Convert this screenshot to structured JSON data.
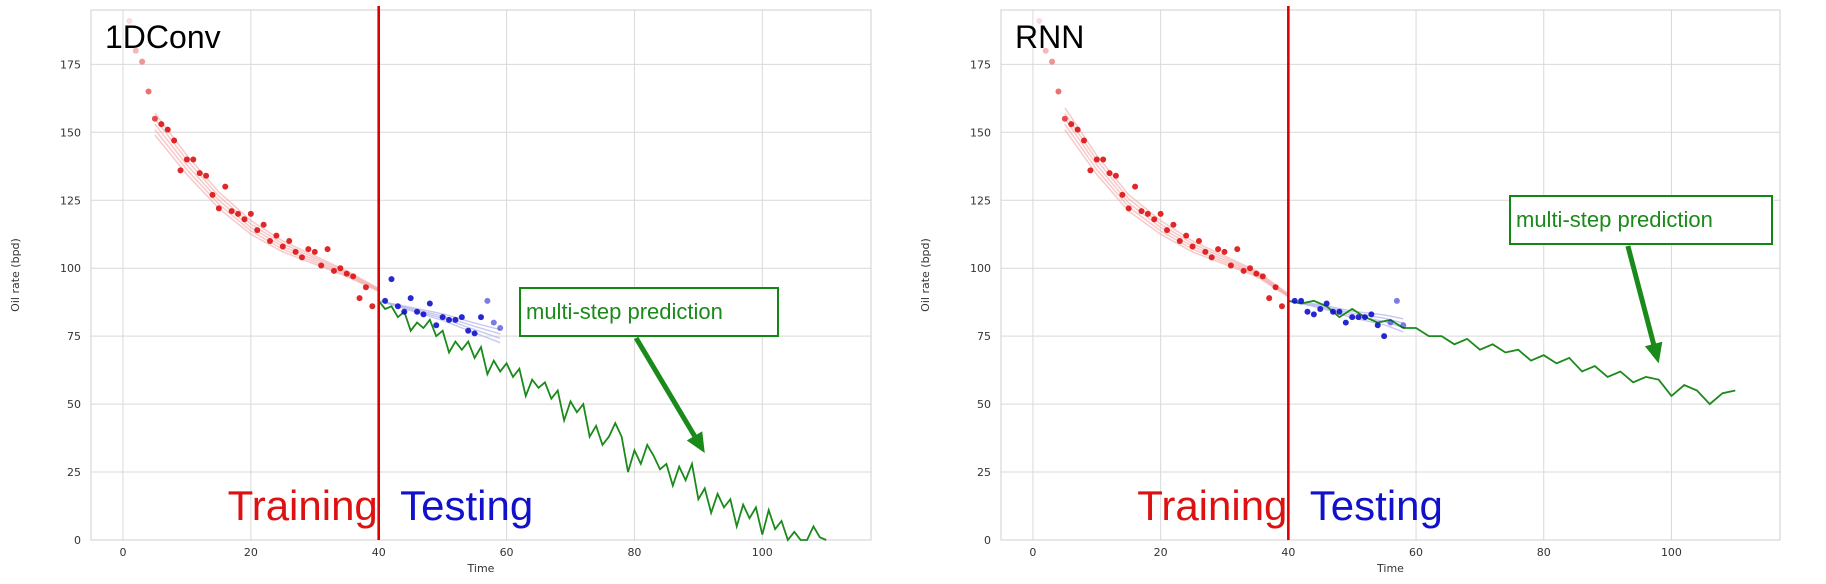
{
  "colors": {
    "training": "#dd1111",
    "testing": "#1111cc",
    "prediction": "#1a8a1a",
    "fit": "#f4a6a6",
    "test_fit": "#b9b9ee",
    "divider": "#dd0000",
    "grid": "#d9d9d9"
  },
  "chart_data": [
    {
      "type": "scatter",
      "title": "1DConv",
      "xlabel": "Time",
      "ylabel": "Oil rate (bpd)",
      "xlim": [
        -5,
        117
      ],
      "ylim": [
        0,
        195
      ],
      "xticks": [
        0,
        20,
        40,
        60,
        80,
        100
      ],
      "yticks": [
        0,
        25,
        50,
        75,
        100,
        125,
        150,
        175
      ],
      "grid": true,
      "split_x": 40,
      "region_labels": {
        "training": "Training",
        "testing": "Testing"
      },
      "annotation": "multi-step prediction",
      "annotation_arrow_target": [
        91,
        32
      ],
      "series": [
        {
          "role": "training",
          "x": [
            1,
            2,
            3,
            4,
            5,
            6,
            7,
            8,
            9,
            10,
            11,
            12,
            13,
            14,
            15,
            16,
            17,
            18,
            19,
            20,
            21,
            22,
            23,
            24,
            25,
            26,
            27,
            28,
            29,
            30,
            31,
            32,
            33,
            34,
            35,
            36,
            37,
            38,
            39
          ],
          "y": [
            191,
            180,
            176,
            165,
            155,
            153,
            151,
            147,
            136,
            140,
            140,
            135,
            134,
            127,
            122,
            130,
            121,
            120,
            118,
            120,
            114,
            116,
            110,
            112,
            108,
            110,
            106,
            104,
            107,
            106,
            101,
            107,
            99,
            100,
            98,
            97,
            89,
            93,
            86
          ]
        },
        {
          "role": "testing",
          "x": [
            41,
            42,
            43,
            44,
            45,
            46,
            47,
            48,
            49,
            50,
            51,
            52,
            53,
            54,
            55,
            56,
            57,
            58,
            59
          ],
          "y": [
            88,
            96,
            86,
            84,
            89,
            84,
            83,
            87,
            79,
            82,
            81,
            81,
            82,
            77,
            76,
            82,
            88,
            80,
            78
          ]
        },
        {
          "role": "training_fit",
          "x": [
            5,
            10,
            15,
            20,
            25,
            30,
            35,
            40
          ],
          "y": [
            153,
            138,
            125,
            115,
            108,
            103,
            98,
            92
          ]
        },
        {
          "role": "testing_fit",
          "x": [
            40,
            45,
            50,
            55,
            59
          ],
          "y": [
            88,
            85,
            82,
            78,
            75
          ]
        },
        {
          "role": "prediction",
          "x": [
            40,
            41,
            42,
            43,
            44,
            45,
            46,
            47,
            48,
            49,
            50,
            51,
            52,
            53,
            54,
            55,
            56,
            57,
            58,
            59,
            60,
            61,
            62,
            63,
            64,
            65,
            66,
            67,
            68,
            69,
            70,
            71,
            72,
            73,
            74,
            75,
            76,
            77,
            78,
            79,
            80,
            81,
            82,
            83,
            84,
            85,
            86,
            87,
            88,
            89,
            90,
            91,
            92,
            93,
            94,
            95,
            96,
            97,
            98,
            99,
            100,
            101,
            102,
            103,
            104,
            105,
            106,
            107,
            108,
            109,
            110
          ],
          "y": [
            88,
            85,
            86,
            82,
            84,
            77,
            80,
            78,
            81,
            75,
            77,
            69,
            73,
            70,
            73,
            67,
            71,
            61,
            66,
            62,
            65,
            60,
            63,
            53,
            59,
            56,
            58,
            52,
            55,
            44,
            51,
            47,
            50,
            38,
            42,
            35,
            38,
            43,
            38,
            25,
            33,
            28,
            35,
            31,
            26,
            28,
            20,
            27,
            22,
            28,
            15,
            19,
            10,
            17,
            12,
            15,
            5,
            13,
            8,
            12,
            2,
            11,
            4,
            7,
            0,
            3,
            0,
            -4,
            5,
            1,
            -2
          ]
        }
      ]
    },
    {
      "type": "scatter",
      "title": "RNN",
      "xlabel": "Time",
      "ylabel": "Oil rate (bpd)",
      "xlim": [
        -5,
        117
      ],
      "ylim": [
        0,
        195
      ],
      "xticks": [
        0,
        20,
        40,
        60,
        80,
        100
      ],
      "yticks": [
        0,
        25,
        50,
        75,
        100,
        125,
        150,
        175
      ],
      "grid": true,
      "split_x": 40,
      "region_labels": {
        "training": "Training",
        "testing": "Testing"
      },
      "annotation": "multi-step prediction",
      "annotation_arrow_target": [
        98,
        65
      ],
      "series": [
        {
          "role": "training",
          "x": [
            1,
            2,
            3,
            4,
            5,
            6,
            7,
            8,
            9,
            10,
            11,
            12,
            13,
            14,
            15,
            16,
            17,
            18,
            19,
            20,
            21,
            22,
            23,
            24,
            25,
            26,
            27,
            28,
            29,
            30,
            31,
            32,
            33,
            34,
            35,
            36,
            37,
            38,
            39
          ],
          "y": [
            191,
            180,
            176,
            165,
            155,
            153,
            151,
            147,
            136,
            140,
            140,
            135,
            134,
            127,
            122,
            130,
            121,
            120,
            118,
            120,
            114,
            116,
            110,
            112,
            108,
            110,
            106,
            104,
            107,
            106,
            101,
            107,
            99,
            100,
            98,
            97,
            89,
            93,
            86
          ]
        },
        {
          "role": "testing",
          "x": [
            41,
            42,
            43,
            44,
            45,
            46,
            47,
            48,
            49,
            50,
            51,
            52,
            53,
            54,
            55,
            56,
            57,
            58
          ],
          "y": [
            88,
            88,
            84,
            83,
            85,
            87,
            84,
            84,
            80,
            82,
            82,
            82,
            83,
            79,
            75,
            80,
            88,
            79
          ]
        },
        {
          "role": "training_fit",
          "x": [
            5,
            10,
            15,
            20,
            25,
            30,
            35,
            40
          ],
          "y": [
            155,
            138,
            124,
            115,
            108,
            103,
            98,
            90
          ]
        },
        {
          "role": "testing_fit",
          "x": [
            40,
            45,
            50,
            55,
            58
          ],
          "y": [
            88,
            86,
            83,
            81,
            79
          ]
        },
        {
          "role": "prediction",
          "x": [
            40,
            42,
            44,
            46,
            48,
            50,
            52,
            54,
            56,
            58,
            60,
            62,
            64,
            66,
            68,
            70,
            72,
            74,
            76,
            78,
            80,
            82,
            84,
            86,
            88,
            90,
            92,
            94,
            96,
            98,
            100,
            102,
            104,
            106,
            108,
            110
          ],
          "y": [
            88,
            87,
            88,
            86,
            82,
            85,
            82,
            80,
            81,
            78,
            78,
            75,
            75,
            72,
            74,
            70,
            72,
            69,
            70,
            66,
            68,
            65,
            67,
            62,
            64,
            60,
            62,
            58,
            60,
            59,
            53,
            57,
            55,
            50,
            54,
            55
          ]
        }
      ]
    }
  ]
}
